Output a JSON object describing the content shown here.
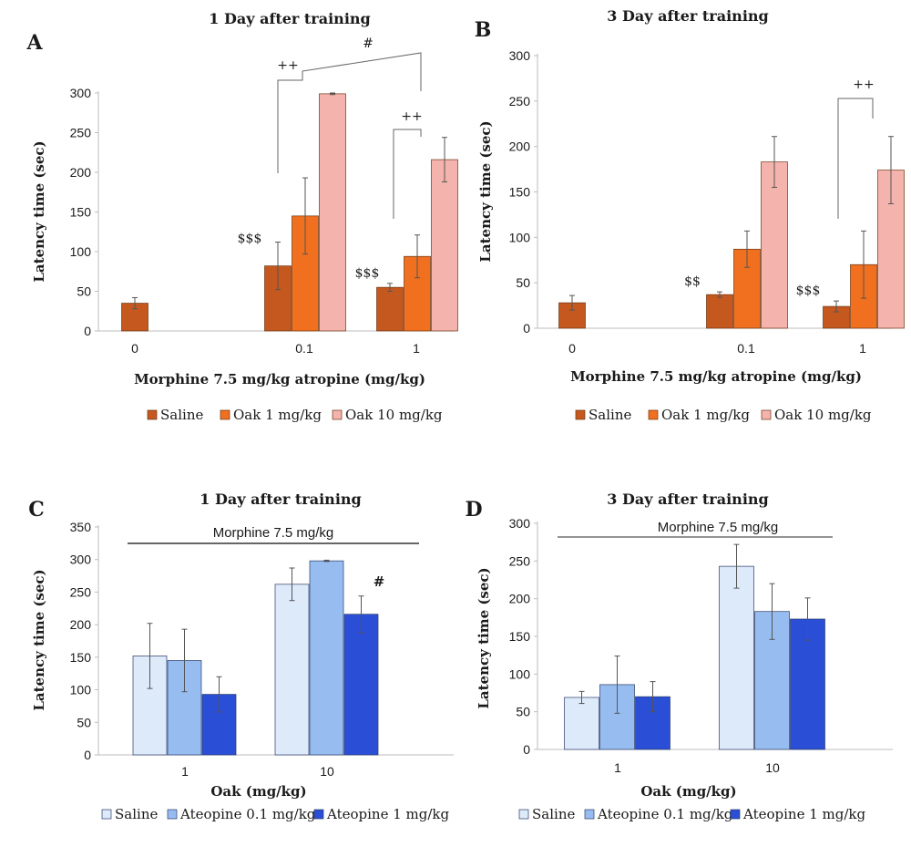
{
  "chart_data": [
    {
      "panel": "A",
      "type": "bar",
      "title": "1 Day after training",
      "xlabel": "Morphine 7.5 mg/kg atropine (mg/kg)",
      "ylabel": "Latency time (sec)",
      "ylim": [
        0,
        300
      ],
      "yticks": [
        0,
        50,
        100,
        150,
        200,
        250,
        300
      ],
      "categories": [
        "0",
        "0.1",
        "1"
      ],
      "series": [
        {
          "name": "Saline",
          "color": "#c5581e",
          "values": [
            35,
            82,
            55
          ],
          "errors": [
            7,
            30,
            5
          ]
        },
        {
          "name": "Oak 1 mg/kg",
          "color": "#f07020",
          "values": [
            null,
            145,
            94
          ],
          "errors": [
            null,
            48,
            27
          ]
        },
        {
          "name": "Oak 10 mg/kg",
          "color": "#f5b3ae",
          "values": [
            null,
            299,
            216
          ],
          "errors": [
            null,
            1,
            28
          ]
        }
      ],
      "annotations": [
        "$$$",
        "$$$",
        "++",
        "++",
        "#"
      ],
      "legend": "bottom"
    },
    {
      "panel": "B",
      "type": "bar",
      "title": "3 Day after training",
      "xlabel": "Morphine 7.5 mg/kg atropine (mg/kg)",
      "ylabel": "Latency time (sec)",
      "ylim": [
        0,
        300
      ],
      "yticks": [
        0,
        50,
        100,
        150,
        200,
        250,
        300
      ],
      "categories": [
        "0",
        "0.1",
        "1"
      ],
      "series": [
        {
          "name": "Saline",
          "color": "#c5581e",
          "values": [
            28,
            37,
            24
          ],
          "errors": [
            8,
            3,
            6
          ]
        },
        {
          "name": "Oak 1 mg/kg",
          "color": "#f07020",
          "values": [
            null,
            87,
            70
          ],
          "errors": [
            null,
            20,
            37
          ]
        },
        {
          "name": "Oak 10 mg/kg",
          "color": "#f5b3ae",
          "values": [
            null,
            183,
            174
          ],
          "errors": [
            null,
            28,
            37
          ]
        }
      ],
      "annotations": [
        "$$",
        "$$$",
        "++"
      ],
      "legend": "bottom"
    },
    {
      "panel": "C",
      "type": "bar",
      "title": "1 Day after training",
      "xlabel": "Oak (mg/kg)",
      "ylabel": "Latency time (sec)",
      "ylim": [
        0,
        350
      ],
      "yticks": [
        0,
        50,
        100,
        150,
        200,
        250,
        300,
        350
      ],
      "categories": [
        "1",
        "10"
      ],
      "series": [
        {
          "name": "Saline",
          "color": "#ddeafa",
          "values": [
            152,
            262
          ],
          "errors": [
            50,
            25
          ]
        },
        {
          "name": "Ateopine 0.1 mg/kg",
          "color": "#97bdf0",
          "values": [
            145,
            298
          ],
          "errors": [
            48,
            1
          ]
        },
        {
          "name": "Ateopine 1 mg/kg",
          "color": "#2a4fd6",
          "values": [
            93,
            216
          ],
          "errors": [
            27,
            28
          ]
        }
      ],
      "annotations": [
        "Morphine 7.5 mg/kg",
        "#"
      ],
      "legend": "bottom"
    },
    {
      "panel": "D",
      "type": "bar",
      "title": "3 Day after training",
      "xlabel": "Oak (mg/kg)",
      "ylabel": "Latency time (sec)",
      "ylim": [
        0,
        300
      ],
      "yticks": [
        0,
        50,
        100,
        150,
        200,
        250,
        300
      ],
      "categories": [
        "1",
        "10"
      ],
      "series": [
        {
          "name": "Saline",
          "color": "#ddeafa",
          "values": [
            69,
            243
          ],
          "errors": [
            8,
            29
          ]
        },
        {
          "name": "Ateopine 0.1 mg/kg",
          "color": "#97bdf0",
          "values": [
            86,
            183
          ],
          "errors": [
            38,
            37
          ]
        },
        {
          "name": "Ateopine 1 mg/kg",
          "color": "#2a4fd6",
          "values": [
            70,
            173
          ],
          "errors": [
            20,
            28
          ]
        }
      ],
      "annotations": [
        "Morphine 7.5 mg/kg"
      ],
      "legend": "bottom"
    }
  ]
}
